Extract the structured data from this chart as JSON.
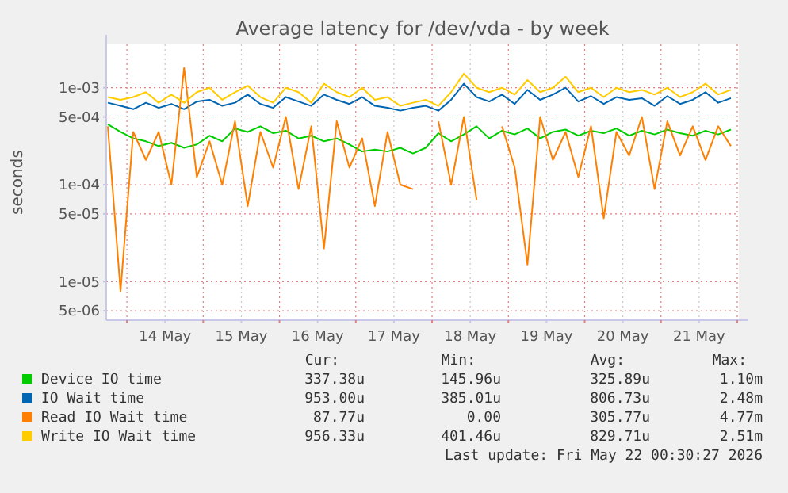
{
  "chart_data": {
    "type": "line",
    "title": "Average latency for /dev/vda - by week",
    "ylabel": "seconds",
    "log": "y",
    "grid": true,
    "legend": "bottom",
    "marker": "none",
    "line_style": "solid",
    "xlim": [
      "2026-05-13T17:30",
      "2026-05-22T00:30"
    ],
    "xticks": [
      {
        "value": "2026-05-14T00:00",
        "label": null
      },
      {
        "value": "2026-05-14T12:00",
        "label": "14 May"
      },
      {
        "value": "2026-05-15T00:00",
        "label": null
      },
      {
        "value": "2026-05-15T12:00",
        "label": "15 May"
      },
      {
        "value": "2026-05-16T00:00",
        "label": null
      },
      {
        "value": "2026-05-16T12:00",
        "label": "16 May"
      },
      {
        "value": "2026-05-17T00:00",
        "label": null
      },
      {
        "value": "2026-05-17T12:00",
        "label": "17 May"
      },
      {
        "value": "2026-05-18T00:00",
        "label": null
      },
      {
        "value": "2026-05-18T12:00",
        "label": "18 May"
      },
      {
        "value": "2026-05-19T00:00",
        "label": null
      },
      {
        "value": "2026-05-19T12:00",
        "label": "19 May"
      },
      {
        "value": "2026-05-20T00:00",
        "label": null
      },
      {
        "value": "2026-05-20T12:00",
        "label": "20 May"
      },
      {
        "value": "2026-05-21T00:00",
        "label": null
      },
      {
        "value": "2026-05-21T12:00",
        "label": "21 May"
      },
      {
        "value": "2026-05-22T00:00",
        "label": null
      }
    ],
    "ylim": [
      4e-06,
      0.0028
    ],
    "yticks": [
      {
        "value": 5e-06,
        "label": "5e-06"
      },
      {
        "value": 1e-05,
        "label": "1e-05"
      },
      {
        "value": 5e-05,
        "label": "5e-05"
      },
      {
        "value": 0.0001,
        "label": "1e-04"
      },
      {
        "value": 0.0005,
        "label": "5e-04"
      },
      {
        "value": 0.001,
        "label": "1e-03"
      }
    ],
    "x": [
      "2026-05-13T18:00",
      "2026-05-13T22:00",
      "2026-05-14T02:00",
      "2026-05-14T06:00",
      "2026-05-14T10:00",
      "2026-05-14T14:00",
      "2026-05-14T18:00",
      "2026-05-14T22:00",
      "2026-05-15T02:00",
      "2026-05-15T06:00",
      "2026-05-15T10:00",
      "2026-05-15T14:00",
      "2026-05-15T18:00",
      "2026-05-15T22:00",
      "2026-05-16T02:00",
      "2026-05-16T06:00",
      "2026-05-16T10:00",
      "2026-05-16T14:00",
      "2026-05-16T18:00",
      "2026-05-16T22:00",
      "2026-05-17T02:00",
      "2026-05-17T06:00",
      "2026-05-17T10:00",
      "2026-05-17T14:00",
      "2026-05-17T18:00",
      "2026-05-17T22:00",
      "2026-05-18T02:00",
      "2026-05-18T06:00",
      "2026-05-18T10:00",
      "2026-05-18T14:00",
      "2026-05-18T18:00",
      "2026-05-18T22:00",
      "2026-05-19T02:00",
      "2026-05-19T06:00",
      "2026-05-19T10:00",
      "2026-05-19T14:00",
      "2026-05-19T18:00",
      "2026-05-19T22:00",
      "2026-05-20T02:00",
      "2026-05-20T06:00",
      "2026-05-20T10:00",
      "2026-05-20T14:00",
      "2026-05-20T18:00",
      "2026-05-20T22:00",
      "2026-05-21T02:00",
      "2026-05-21T06:00",
      "2026-05-21T10:00",
      "2026-05-21T14:00",
      "2026-05-21T18:00",
      "2026-05-21T22:00"
    ],
    "series": [
      {
        "name": "Device IO time",
        "color": "#00cc00",
        "values": [
          0.00042,
          0.00035,
          0.0003,
          0.00028,
          0.00025,
          0.00027,
          0.00024,
          0.00026,
          0.00032,
          0.00028,
          0.00038,
          0.00035,
          0.0004,
          0.00034,
          0.00036,
          0.0003,
          0.00032,
          0.00028,
          0.0003,
          0.00026,
          0.00022,
          0.00023,
          0.00022,
          0.00024,
          0.00021,
          0.00024,
          0.00034,
          0.00028,
          0.00033,
          0.0004,
          0.0003,
          0.00036,
          0.00033,
          0.00038,
          0.0003,
          0.00035,
          0.00037,
          0.00032,
          0.00036,
          0.00034,
          0.00038,
          0.00032,
          0.00036,
          0.00033,
          0.00037,
          0.00034,
          0.00032,
          0.00036,
          0.00033,
          0.00037
        ]
      },
      {
        "name": "IO Wait time",
        "color": "#0066b3",
        "values": [
          0.0007,
          0.00065,
          0.0006,
          0.0007,
          0.00062,
          0.00068,
          0.0006,
          0.00072,
          0.00075,
          0.00065,
          0.0007,
          0.00085,
          0.00068,
          0.00062,
          0.0008,
          0.00072,
          0.00065,
          0.00085,
          0.00075,
          0.00068,
          0.0008,
          0.00065,
          0.00062,
          0.00058,
          0.00062,
          0.00065,
          0.00058,
          0.00075,
          0.0011,
          0.0008,
          0.00072,
          0.00085,
          0.00068,
          0.00095,
          0.00075,
          0.00085,
          0.001,
          0.00072,
          0.00082,
          0.00068,
          0.0008,
          0.00075,
          0.00078,
          0.00065,
          0.00082,
          0.00068,
          0.00075,
          0.0009,
          0.0007,
          0.00078
        ]
      },
      {
        "name": "Read IO Wait time",
        "color": "#ff8000",
        "values": [
          0.0004,
          8e-06,
          0.00035,
          0.00018,
          0.00035,
          0.0001,
          0.0016,
          0.00012,
          0.00028,
          0.0001,
          0.00045,
          6e-05,
          0.00035,
          0.00015,
          0.0005,
          9e-05,
          0.0004,
          2.2e-05,
          0.00045,
          0.00015,
          0.0003,
          6e-05,
          0.00035,
          0.0001,
          9e-05,
          null,
          0.00045,
          0.0001,
          0.0005,
          7e-05,
          null,
          0.0004,
          0.00015,
          1.5e-05,
          0.0005,
          0.00018,
          0.00035,
          0.00012,
          0.0004,
          4.5e-05,
          0.00035,
          0.0002,
          0.0005,
          9e-05,
          0.00045,
          0.0002,
          0.0004,
          0.00018,
          0.0004,
          0.00025
        ]
      },
      {
        "name": "Write IO Wait time",
        "color": "#ffcc00",
        "values": [
          0.0008,
          0.00075,
          0.0008,
          0.0009,
          0.0007,
          0.00085,
          0.0007,
          0.0009,
          0.001,
          0.00075,
          0.0009,
          0.00105,
          0.0008,
          0.0007,
          0.001,
          0.0009,
          0.0007,
          0.0011,
          0.0009,
          0.0008,
          0.001,
          0.00075,
          0.0008,
          0.00065,
          0.0007,
          0.00075,
          0.00065,
          0.0009,
          0.0014,
          0.001,
          0.0009,
          0.001,
          0.00085,
          0.0012,
          0.0009,
          0.001,
          0.0013,
          0.0009,
          0.001,
          0.0008,
          0.001,
          0.0009,
          0.00095,
          0.00085,
          0.001,
          0.0008,
          0.0009,
          0.0011,
          0.00085,
          0.00095
        ]
      }
    ],
    "annotations": [
      "Cur:",
      "Min:",
      "Avg:",
      "Max:",
      "337.38u",
      "145.96u",
      "325.89u",
      "1.10m",
      "953.00u",
      "385.01u",
      "806.73u",
      "2.48m",
      "87.77u",
      "0.00",
      "305.77u",
      "4.77m",
      "956.33u",
      "401.46u",
      "829.71u",
      "2.51m",
      "Last update: Fri May 22 00:30:27 2026"
    ]
  }
}
